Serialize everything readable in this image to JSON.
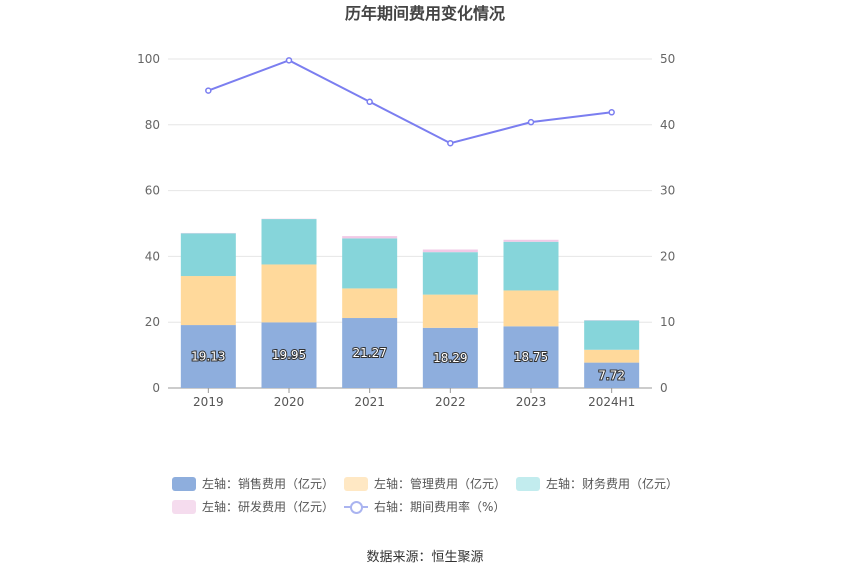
{
  "chart_data": {
    "type": "bar",
    "title": "历年期间费用变化情况",
    "categories": [
      "2019",
      "2020",
      "2021",
      "2022",
      "2023",
      "2024H1"
    ],
    "stacked": true,
    "series": [
      {
        "name": "左轴：销售费用（亿元）",
        "axis": "left",
        "type": "bar",
        "color": "#8eaedd",
        "values": [
          19.13,
          19.95,
          21.27,
          18.29,
          18.75,
          7.72
        ]
      },
      {
        "name": "左轴：管理费用（亿元）",
        "axis": "left",
        "type": "bar",
        "color": "#ffd99b",
        "values": [
          14.9,
          17.6,
          9.0,
          10.1,
          10.9,
          3.9
        ]
      },
      {
        "name": "左轴：财务费用（亿元）",
        "axis": "left",
        "type": "bar",
        "color": "#86d5da",
        "values": [
          13.0,
          13.8,
          15.2,
          12.9,
          14.8,
          8.9
        ]
      },
      {
        "name": "左轴：研发费用（亿元）",
        "axis": "left",
        "type": "bar",
        "color": "#f2c9e6",
        "values": [
          0.1,
          0.1,
          0.7,
          0.8,
          0.6,
          0.1
        ]
      },
      {
        "name": "右轴：期间费用率（%）",
        "axis": "right",
        "type": "line",
        "color": "#7b7ef0",
        "values": [
          45.2,
          49.8,
          43.5,
          37.2,
          40.4,
          41.9
        ]
      }
    ],
    "data_labels": [
      "19.13",
      "19.95",
      "21.27",
      "18.29",
      "18.75",
      "7.72"
    ],
    "ylim_left": [
      0,
      100
    ],
    "ylim_right": [
      0,
      50
    ],
    "yticks_left": [
      "0",
      "20",
      "40",
      "60",
      "80",
      "100"
    ],
    "yticks_right": [
      "0",
      "10",
      "20",
      "30",
      "40",
      "50"
    ],
    "grid": true,
    "legend_position": "bottom"
  },
  "legend": {
    "sales": "左轴：销售费用（亿元）",
    "admin": "左轴：管理费用（亿元）",
    "finance": "左轴：财务费用（亿元）",
    "rnd": "左轴：研发费用（亿元）",
    "rate": "右轴：期间费用率（%）"
  },
  "source": "数据来源：恒生聚源"
}
